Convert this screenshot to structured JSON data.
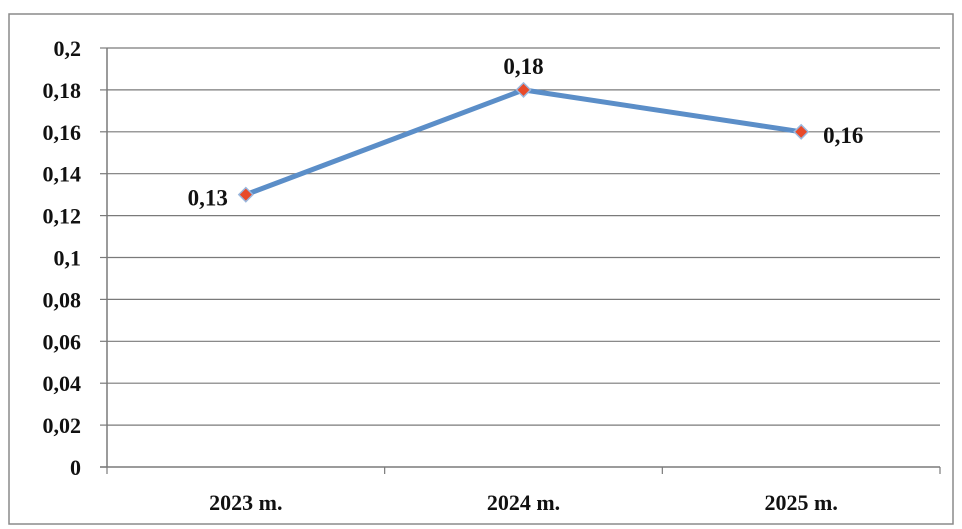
{
  "chart_data": {
    "type": "line",
    "title": "",
    "xlabel": "",
    "ylabel": "",
    "categories": [
      "2023 m.",
      "2024 m.",
      "2025 m."
    ],
    "series": [
      {
        "values": [
          0.13,
          0.18,
          0.16
        ],
        "data_labels": [
          "0,13",
          "0,18",
          "0,16"
        ],
        "color": "#5b8ec8",
        "marker_color": "#e84a2a"
      }
    ],
    "ylim": [
      0,
      0.2
    ],
    "y_ticks": [
      0,
      0.02,
      0.04,
      0.06,
      0.08,
      0.1,
      0.12,
      0.14,
      0.16,
      0.18,
      0.2
    ],
    "y_tick_labels": [
      "0",
      "0,02",
      "0,04",
      "0,06",
      "0,08",
      "0,1",
      "0,12",
      "0,14",
      "0,16",
      "0,18",
      "0,2"
    ],
    "grid": true,
    "legend": "none"
  }
}
